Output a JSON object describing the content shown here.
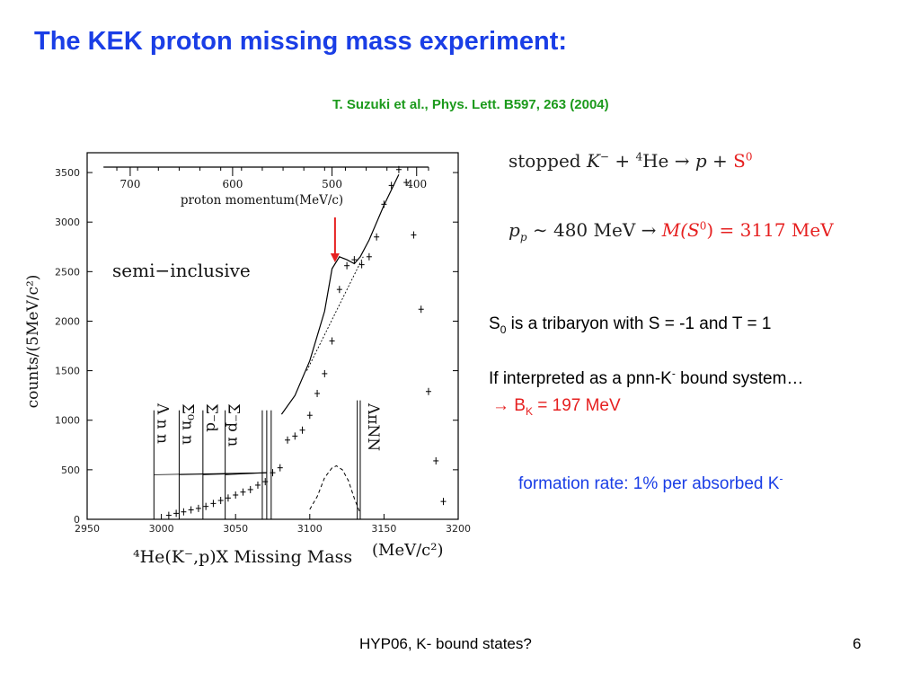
{
  "slide": {
    "title": "The KEK proton missing mass experiment:",
    "citation": "T. Suzuki et al., Phys. Lett. B597, 263 (2004)",
    "eq1": {
      "stopped": "stopped",
      "kminus": "K",
      "kminus_sup": "−",
      "plus1": " + ",
      "he_mass": "4",
      "he": "He",
      "arrow": " → ",
      "p": "p",
      "plus2": " + ",
      "s": "S",
      "s_sup": "0"
    },
    "eq2": {
      "p": "p",
      "p_sub": "p",
      "approx": " ∼ 480 MeV  →  ",
      "m_lhs": "M(S",
      "m_sup": "0",
      "m_rhs": ") = 3117 MeV"
    },
    "s0_line": {
      "s": "S",
      "sub": "0",
      "rest": " is a tribaryon with S = -1 and  T = 1"
    },
    "interp_line": {
      "prefix": "If interpreted as a pnn-K",
      "sup": "-",
      "suffix": " bound system…"
    },
    "bk_line": {
      "arrow": "→",
      "b": " B",
      "sub": "K",
      "rest": " = 197 MeV"
    },
    "formation_line": {
      "text": "formation rate: 1% per absorbed K",
      "sup": "-"
    },
    "footer_left": "HYP06, K- bound states?",
    "page_number": "6"
  },
  "chart_data": {
    "type": "scatter",
    "xlabel": "⁴He(K⁻,p)X Missing Mass",
    "xlabel_unit": "(MeV/c²)",
    "ylabel": "counts/(5MeV/c²)",
    "xlim": [
      2950,
      3200
    ],
    "ylim": [
      0,
      3700
    ],
    "xticks": [
      "2950",
      "3000",
      "3050",
      "3100",
      "3150",
      "3200"
    ],
    "yticks": [
      "0",
      "500",
      "1000",
      "1500",
      "2000",
      "2500",
      "3000",
      "3500"
    ],
    "top_axis_label": "proton momentum(MeV/c)",
    "top_axis_ticks": [
      {
        "label": "700",
        "x": 2979
      },
      {
        "label": "600",
        "x": 3048
      },
      {
        "label": "500",
        "x": 3115
      },
      {
        "label": "400",
        "x": 3172
      }
    ],
    "panel_label": "semi−inclusive",
    "threshold_labels": [
      {
        "text": "Λ n n",
        "x": 2995
      },
      {
        "text": "Σ⁰n n",
        "x": 3012
      },
      {
        "text": "Σ⁻d",
        "x": 3028
      },
      {
        "text": "Σ⁻p n",
        "x": 3043
      },
      {
        "text": "ΛπNN",
        "x": 3137
      }
    ],
    "threshold_x": [
      2995,
      3012,
      3028,
      3043,
      3068,
      3071,
      3074,
      3132,
      3134
    ],
    "data_points": {
      "x": [
        3005,
        3010,
        3015,
        3020,
        3025,
        3030,
        3035,
        3040,
        3045,
        3050,
        3055,
        3060,
        3065,
        3070,
        3075,
        3080,
        3085,
        3090,
        3095,
        3100,
        3105,
        3110,
        3115,
        3120,
        3125,
        3130,
        3135,
        3140,
        3145,
        3150,
        3155,
        3160,
        3165,
        3170,
        3175,
        3180,
        3185,
        3190
      ],
      "y": [
        40,
        60,
        75,
        95,
        110,
        130,
        160,
        190,
        215,
        245,
        275,
        300,
        345,
        380,
        470,
        520,
        800,
        840,
        900,
        1050,
        1270,
        1470,
        1800,
        2320,
        2560,
        2620,
        2570,
        2650,
        2850,
        3180,
        3370,
        3530,
        3400,
        2870,
        2120,
        1290,
        590,
        180
      ]
    },
    "fit_curve": {
      "x": [
        3081,
        3090,
        3100,
        3110,
        3115,
        3120,
        3125,
        3130,
        3134,
        3140,
        3150,
        3160
      ],
      "y": [
        1060,
        1250,
        1600,
        2100,
        2530,
        2650,
        2620,
        2580,
        2650,
        2820,
        3170,
        3480
      ]
    },
    "background_line": {
      "x": [
        3098,
        3136
      ],
      "y": [
        1500,
        2650
      ]
    },
    "lambda_pi_nn_curve": {
      "x": [
        3100,
        3105,
        3110,
        3115,
        3118,
        3122,
        3126,
        3130,
        3134
      ],
      "y": [
        100,
        230,
        420,
        520,
        540,
        500,
        390,
        210,
        60
      ]
    },
    "arrow_x": 3117,
    "colors": {
      "title": "#1a3ee6",
      "citation": "#1c9a1c",
      "highlight": "#e62020",
      "text": "#000000"
    }
  }
}
